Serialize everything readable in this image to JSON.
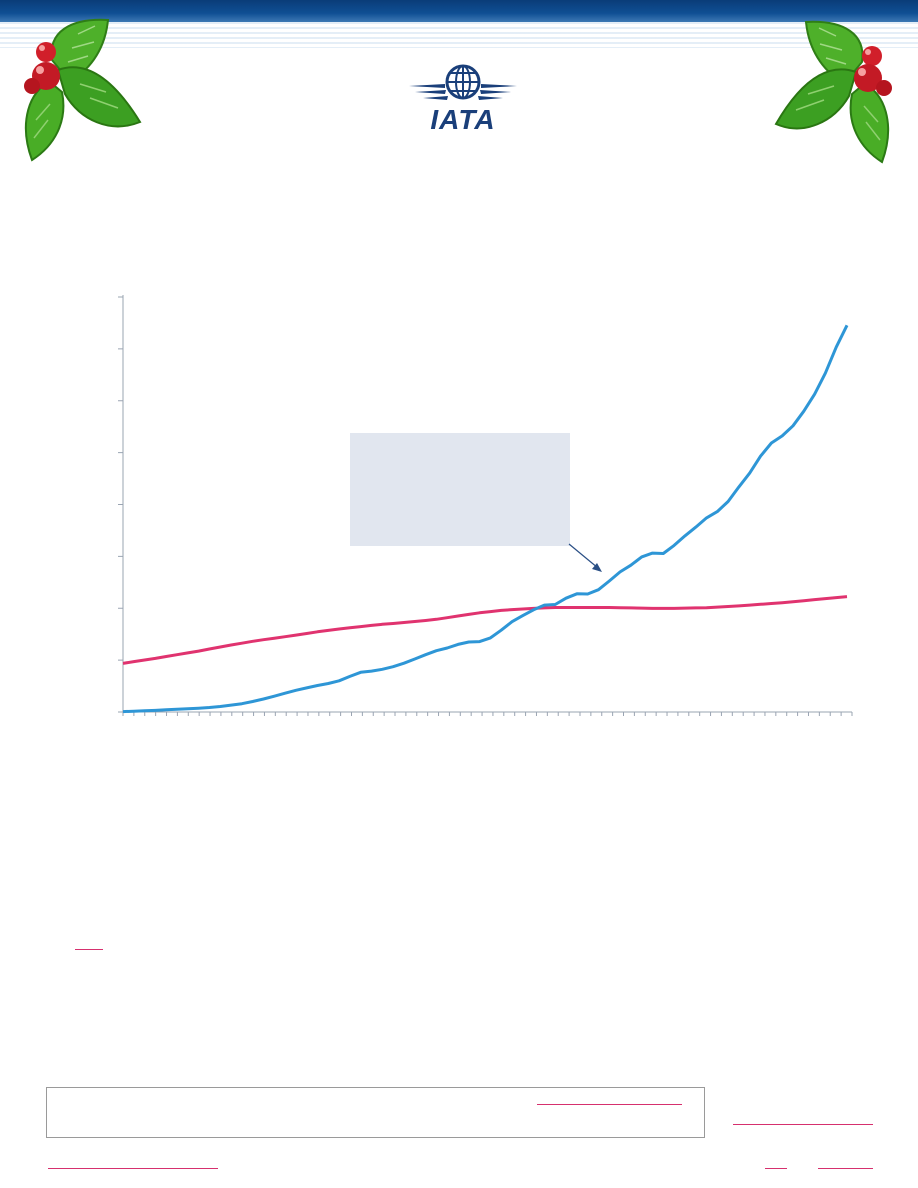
{
  "brand": {
    "logo_text": "IATA",
    "primary_color": "#1a3f7a",
    "accent_color": "#d6306e"
  },
  "decoration": {
    "left_icon": "holly-icon",
    "right_icon": "holly-icon"
  },
  "chart_data": {
    "type": "line",
    "x": [
      0,
      1,
      2,
      3,
      4,
      5,
      6,
      7,
      8,
      9,
      10,
      11,
      12,
      13,
      14,
      15,
      16,
      17,
      18,
      19,
      20,
      21,
      22,
      23,
      24,
      25,
      26,
      27,
      28,
      29,
      30,
      31,
      32,
      33,
      34,
      35,
      36,
      37,
      38,
      39,
      40,
      41,
      42,
      43,
      44,
      45,
      46,
      47,
      48,
      49,
      50,
      51,
      52,
      53,
      54,
      55,
      56,
      57,
      58,
      59,
      60,
      61,
      62,
      63,
      64,
      65,
      66,
      67
    ],
    "series": [
      {
        "color": "#2e96d6",
        "values": [
          0.2,
          0.4,
          0.6,
          0.8,
          1.1,
          1.4,
          1.6,
          1.9,
          2.2,
          2.7,
          3.4,
          4.1,
          5.2,
          6.4,
          7.8,
          9.3,
          10.7,
          11.9,
          13.1,
          14.1,
          15.4,
          17.6,
          19.6,
          20.2,
          21.1,
          22.4,
          24.1,
          26.2,
          28.3,
          30.3,
          31.6,
          33.4,
          34.6,
          34.8,
          36.6,
          40.4,
          44.6,
          47.6,
          50.5,
          52.8,
          53.1,
          56.2,
          58.4,
          58.3,
          60.4,
          64.7,
          69.2,
          72.5,
          76.6,
          78.5,
          78.3,
          82.3,
          87.0,
          91.3,
          95.9,
          99.0,
          104.0,
          111.2,
          118.0,
          126.4,
          132.9,
          136.4,
          141.4,
          148.6,
          157.0,
          167.4,
          180.2,
          191.0
        ]
      },
      {
        "color": "#e0336f",
        "values": [
          24.0,
          24.9,
          25.7,
          26.5,
          27.4,
          28.3,
          29.2,
          30.1,
          31.1,
          32.1,
          33.1,
          34.0,
          34.9,
          35.7,
          36.4,
          37.2,
          38.0,
          38.8,
          39.6,
          40.3,
          41.0,
          41.6,
          42.2,
          42.8,
          43.3,
          43.7,
          44.2,
          44.7,
          45.2,
          45.8,
          46.6,
          47.4,
          48.2,
          49.0,
          49.6,
          50.2,
          50.6,
          50.9,
          51.2,
          51.4,
          51.6,
          51.6,
          51.6,
          51.6,
          51.6,
          51.6,
          51.5,
          51.4,
          51.3,
          51.2,
          51.2,
          51.2,
          51.3,
          51.4,
          51.5,
          51.8,
          52.1,
          52.4,
          52.8,
          53.2,
          53.6,
          54.0,
          54.5,
          55.0,
          55.5,
          56.0,
          56.5,
          57.0
        ]
      }
    ],
    "ylim": [
      0,
      205
    ],
    "y_tick_count": 9,
    "x_tick_count": 68,
    "grid": false,
    "legend": "none",
    "annotation": {
      "style": "callout-box-with-arrow",
      "fill": "#e1e6ef",
      "arrow_color": "#2a4f85"
    }
  }
}
